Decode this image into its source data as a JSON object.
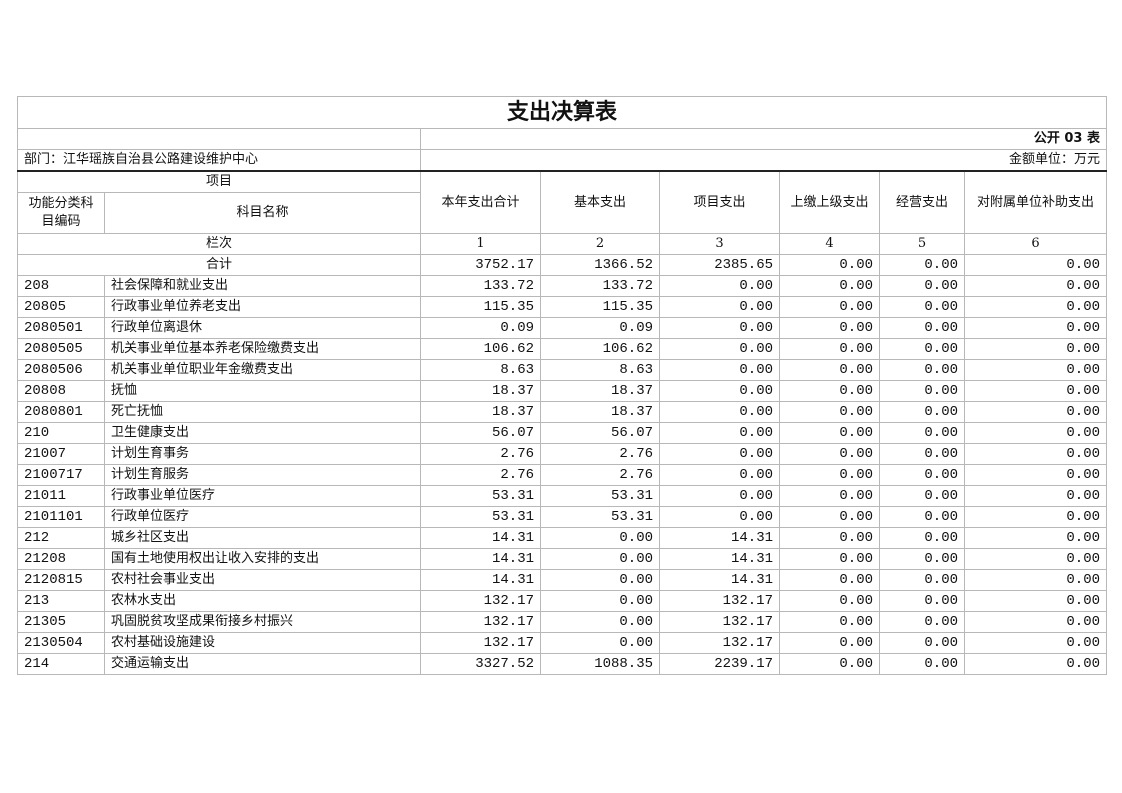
{
  "title": "支出决算表",
  "table_no": "公开 03 表",
  "department": "部门：江华瑶族自治县公路建设维护中心",
  "unit": "金额单位：万元",
  "headers": {
    "item": "项目",
    "code": "功能分类科目编码",
    "name": "科目名称",
    "total": "本年支出合计",
    "basic": "基本支出",
    "project": "项目支出",
    "upper": "上缴上级支出",
    "business": "经营支出",
    "subsidy": "对附属单位补助支出",
    "col_index": "栏次",
    "col_nums": [
      "1",
      "2",
      "3",
      "4",
      "5",
      "6"
    ],
    "sum_label": "合计"
  },
  "sum_row": [
    "3752.17",
    "1366.52",
    "2385.65",
    "0.00",
    "0.00",
    "0.00"
  ],
  "rows": [
    {
      "code": "208",
      "name": "社会保障和就业支出",
      "values": [
        "133.72",
        "133.72",
        "0.00",
        "0.00",
        "0.00",
        "0.00"
      ]
    },
    {
      "code": "20805",
      "name": "行政事业单位养老支出",
      "values": [
        "115.35",
        "115.35",
        "0.00",
        "0.00",
        "0.00",
        "0.00"
      ]
    },
    {
      "code": "2080501",
      "name": "行政单位离退休",
      "values": [
        "0.09",
        "0.09",
        "0.00",
        "0.00",
        "0.00",
        "0.00"
      ]
    },
    {
      "code": "2080505",
      "name": "机关事业单位基本养老保险缴费支出",
      "values": [
        "106.62",
        "106.62",
        "0.00",
        "0.00",
        "0.00",
        "0.00"
      ]
    },
    {
      "code": "2080506",
      "name": "机关事业单位职业年金缴费支出",
      "values": [
        "8.63",
        "8.63",
        "0.00",
        "0.00",
        "0.00",
        "0.00"
      ]
    },
    {
      "code": "20808",
      "name": "抚恤",
      "values": [
        "18.37",
        "18.37",
        "0.00",
        "0.00",
        "0.00",
        "0.00"
      ]
    },
    {
      "code": "2080801",
      "name": "死亡抚恤",
      "values": [
        "18.37",
        "18.37",
        "0.00",
        "0.00",
        "0.00",
        "0.00"
      ]
    },
    {
      "code": "210",
      "name": "卫生健康支出",
      "values": [
        "56.07",
        "56.07",
        "0.00",
        "0.00",
        "0.00",
        "0.00"
      ]
    },
    {
      "code": "21007",
      "name": "计划生育事务",
      "values": [
        "2.76",
        "2.76",
        "0.00",
        "0.00",
        "0.00",
        "0.00"
      ]
    },
    {
      "code": "2100717",
      "name": "计划生育服务",
      "values": [
        "2.76",
        "2.76",
        "0.00",
        "0.00",
        "0.00",
        "0.00"
      ]
    },
    {
      "code": "21011",
      "name": "行政事业单位医疗",
      "values": [
        "53.31",
        "53.31",
        "0.00",
        "0.00",
        "0.00",
        "0.00"
      ]
    },
    {
      "code": "2101101",
      "name": "行政单位医疗",
      "values": [
        "53.31",
        "53.31",
        "0.00",
        "0.00",
        "0.00",
        "0.00"
      ]
    },
    {
      "code": "212",
      "name": "城乡社区支出",
      "values": [
        "14.31",
        "0.00",
        "14.31",
        "0.00",
        "0.00",
        "0.00"
      ]
    },
    {
      "code": "21208",
      "name": "国有土地使用权出让收入安排的支出",
      "values": [
        "14.31",
        "0.00",
        "14.31",
        "0.00",
        "0.00",
        "0.00"
      ]
    },
    {
      "code": "2120815",
      "name": "农村社会事业支出",
      "values": [
        "14.31",
        "0.00",
        "14.31",
        "0.00",
        "0.00",
        "0.00"
      ]
    },
    {
      "code": "213",
      "name": "农林水支出",
      "values": [
        "132.17",
        "0.00",
        "132.17",
        "0.00",
        "0.00",
        "0.00"
      ]
    },
    {
      "code": "21305",
      "name": "巩固脱贫攻坚成果衔接乡村振兴",
      "values": [
        "132.17",
        "0.00",
        "132.17",
        "0.00",
        "0.00",
        "0.00"
      ]
    },
    {
      "code": "2130504",
      "name": "农村基础设施建设",
      "values": [
        "132.17",
        "0.00",
        "132.17",
        "0.00",
        "0.00",
        "0.00"
      ]
    },
    {
      "code": "214",
      "name": "交通运输支出",
      "values": [
        "3327.52",
        "1088.35",
        "2239.17",
        "0.00",
        "0.00",
        "0.00"
      ]
    }
  ]
}
